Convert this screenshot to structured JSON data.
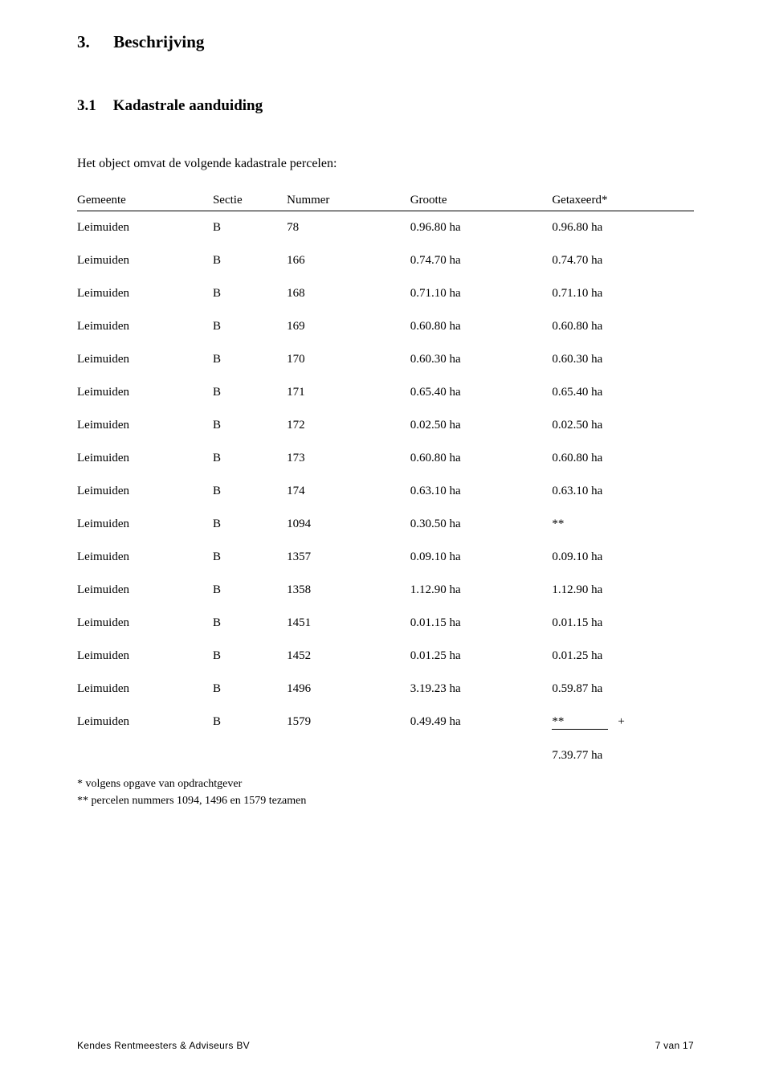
{
  "section": {
    "number": "3.",
    "title": "Beschrijving"
  },
  "subsection": {
    "number": "3.1",
    "title": "Kadastrale aanduiding"
  },
  "intro": "Het object omvat de volgende kadastrale percelen:",
  "columns": {
    "gemeente": "Gemeente",
    "sectie": "Sectie",
    "nummer": "Nummer",
    "grootte": "Grootte",
    "getaxeerd": "Getaxeerd*"
  },
  "rows": [
    {
      "gemeente": "Leimuiden",
      "sectie": "B",
      "nummer": "78",
      "grootte": "0.96.80 ha",
      "getaxeerd": "0.96.80 ha"
    },
    {
      "gemeente": "Leimuiden",
      "sectie": "B",
      "nummer": "166",
      "grootte": "0.74.70 ha",
      "getaxeerd": "0.74.70 ha"
    },
    {
      "gemeente": "Leimuiden",
      "sectie": "B",
      "nummer": "168",
      "grootte": "0.71.10 ha",
      "getaxeerd": "0.71.10 ha"
    },
    {
      "gemeente": "Leimuiden",
      "sectie": "B",
      "nummer": "169",
      "grootte": "0.60.80 ha",
      "getaxeerd": "0.60.80 ha"
    },
    {
      "gemeente": "Leimuiden",
      "sectie": "B",
      "nummer": "170",
      "grootte": "0.60.30 ha",
      "getaxeerd": "0.60.30 ha"
    },
    {
      "gemeente": "Leimuiden",
      "sectie": "B",
      "nummer": "171",
      "grootte": "0.65.40 ha",
      "getaxeerd": "0.65.40 ha"
    },
    {
      "gemeente": "Leimuiden",
      "sectie": "B",
      "nummer": "172",
      "grootte": "0.02.50 ha",
      "getaxeerd": "0.02.50 ha"
    },
    {
      "gemeente": "Leimuiden",
      "sectie": "B",
      "nummer": "173",
      "grootte": "0.60.80 ha",
      "getaxeerd": "0.60.80 ha"
    },
    {
      "gemeente": "Leimuiden",
      "sectie": "B",
      "nummer": "174",
      "grootte": "0.63.10 ha",
      "getaxeerd": "0.63.10 ha"
    },
    {
      "gemeente": "Leimuiden",
      "sectie": "B",
      "nummer": "1094",
      "grootte": "0.30.50 ha",
      "getaxeerd": "**"
    },
    {
      "gemeente": "Leimuiden",
      "sectie": "B",
      "nummer": "1357",
      "grootte": "0.09.10 ha",
      "getaxeerd": "0.09.10 ha"
    },
    {
      "gemeente": "Leimuiden",
      "sectie": "B",
      "nummer": "1358",
      "grootte": "1.12.90 ha",
      "getaxeerd": "1.12.90 ha"
    },
    {
      "gemeente": "Leimuiden",
      "sectie": "B",
      "nummer": "1451",
      "grootte": "0.01.15 ha",
      "getaxeerd": "0.01.15 ha"
    },
    {
      "gemeente": "Leimuiden",
      "sectie": "B",
      "nummer": "1452",
      "grootte": "0.01.25 ha",
      "getaxeerd": "0.01.25 ha"
    },
    {
      "gemeente": "Leimuiden",
      "sectie": "B",
      "nummer": "1496",
      "grootte": "3.19.23 ha",
      "getaxeerd": "0.59.87 ha"
    }
  ],
  "last_row": {
    "gemeente": "Leimuiden",
    "sectie": "B",
    "nummer": "1579",
    "grootte": "0.49.49 ha",
    "getaxeerd": "**",
    "plus": "+"
  },
  "total": "7.39.77 ha",
  "footnote1": "* volgens opgave van opdrachtgever",
  "footnote2": "** percelen nummers 1094, 1496 en 1579 tezamen",
  "footer": {
    "left": "Kendes Rentmeesters & Adviseurs BV",
    "right": "7 van 17"
  }
}
